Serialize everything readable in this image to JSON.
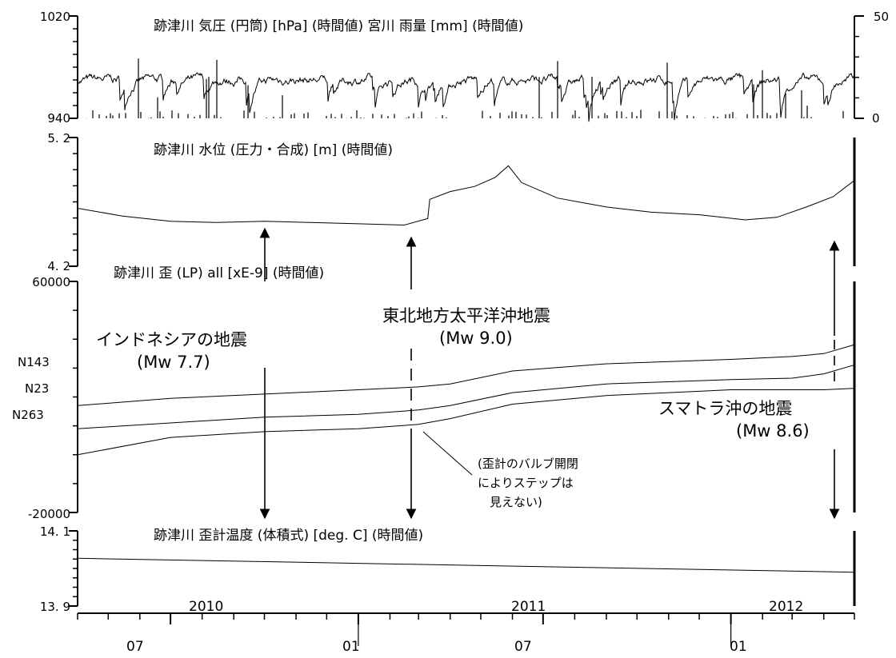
{
  "chart_data": [
    {
      "type": "line",
      "title": "跡津川 気圧 (円筒) [hPa] (時間値) 宮川 雨量 [mm] (時間値)",
      "y_left_ticks": [
        "1020",
        "940"
      ],
      "y_left_range": [
        940,
        1020
      ],
      "y_right_ticks": [
        "50",
        "0"
      ],
      "y_right_range": [
        0,
        50
      ],
      "series": [
        {
          "values_summary": "pressure fluctuates ~955–978 hPa, median ~970 hPa"
        },
        {
          "values_summary": "rainfall bars 0–~30 mm"
        }
      ]
    },
    {
      "type": "line",
      "title": "跡津川 水位 (圧力・合成) [m] (時間値)",
      "y_ticks": [
        "5. 2",
        "4. 2"
      ],
      "y_range": [
        4.2,
        5.2
      ],
      "series": [
        {
          "points": [
            [
              "2010-04-01",
              4.65
            ],
            [
              "2010-05-15",
              4.59
            ],
            [
              "2010-07-01",
              4.55
            ],
            [
              "2010-08-15",
              4.54
            ],
            [
              "2010-10-01",
              4.55
            ],
            [
              "2010-11-15",
              4.54
            ],
            [
              "2011-01-01",
              4.53
            ],
            [
              "2011-02-15",
              4.52
            ],
            [
              "2011-03-10",
              4.57
            ],
            [
              "2011-03-12",
              4.72
            ],
            [
              "2011-04-01",
              4.78
            ],
            [
              "2011-04-25",
              4.82
            ],
            [
              "2011-05-15",
              4.89
            ],
            [
              "2011-05-28",
              4.98
            ],
            [
              "2011-06-10",
              4.85
            ],
            [
              "2011-07-15",
              4.73
            ],
            [
              "2011-09-01",
              4.66
            ],
            [
              "2011-10-15",
              4.62
            ],
            [
              "2011-12-01",
              4.6
            ],
            [
              "2012-01-15",
              4.56
            ],
            [
              "2012-02-15",
              4.58
            ],
            [
              "2012-03-15",
              4.66
            ],
            [
              "2012-04-10",
              4.74
            ],
            [
              "2012-04-30",
              4.86
            ]
          ]
        }
      ]
    },
    {
      "type": "line",
      "title": "跡津川 歪 (LP) all [xE-9] (時間値)",
      "y_ticks": [
        "60000",
        "-20000"
      ],
      "y_range": [
        -20000,
        60000
      ],
      "series": [
        {
          "name": "N143",
          "points": [
            [
              "2010-04-01",
              17000
            ],
            [
              "2010-07-01",
              19500
            ],
            [
              "2010-10-01",
              21000
            ],
            [
              "2011-01-01",
              22500
            ],
            [
              "2011-03-01",
              23500
            ],
            [
              "2011-04-01",
              24500
            ],
            [
              "2011-06-01",
              29000
            ],
            [
              "2011-09-01",
              31500
            ],
            [
              "2012-01-01",
              33000
            ],
            [
              "2012-03-01",
              34000
            ],
            [
              "2012-04-01",
              35000
            ],
            [
              "2012-04-30",
              38000
            ]
          ]
        },
        {
          "name": "N23",
          "points": [
            [
              "2010-04-01",
              9000
            ],
            [
              "2010-07-01",
              11000
            ],
            [
              "2010-10-01",
              13000
            ],
            [
              "2011-01-01",
              14000
            ],
            [
              "2011-03-01",
              15500
            ],
            [
              "2011-04-01",
              17000
            ],
            [
              "2011-06-01",
              21500
            ],
            [
              "2011-09-01",
              24500
            ],
            [
              "2012-01-01",
              26000
            ],
            [
              "2012-03-01",
              26500
            ],
            [
              "2012-04-01",
              28000
            ],
            [
              "2012-04-30",
              31000
            ]
          ]
        },
        {
          "name": "N263",
          "points": [
            [
              "2010-04-01",
              0
            ],
            [
              "2010-07-01",
              6000
            ],
            [
              "2010-10-01",
              8000
            ],
            [
              "2011-01-01",
              9000
            ],
            [
              "2011-03-01",
              10500
            ],
            [
              "2011-04-01",
              12500
            ],
            [
              "2011-06-01",
              17500
            ],
            [
              "2011-09-01",
              20500
            ],
            [
              "2012-01-01",
              22500
            ],
            [
              "2012-03-01",
              22500
            ],
            [
              "2012-04-01",
              22500
            ],
            [
              "2012-04-30",
              23000
            ]
          ]
        }
      ],
      "annotations": [
        {
          "lines": [
            "インドネシアの地震",
            "(Mw 7.7)"
          ],
          "date": "2010-10-25"
        },
        {
          "lines": [
            "東北地方太平洋沖地震",
            "(Mw 9.0)"
          ],
          "date": "2011-03-11"
        },
        {
          "lines": [
            "スマトラ沖の地震",
            "(Mw 8.6)"
          ],
          "date": "2012-04-11"
        },
        {
          "lines": [
            "(歪計のバルブ開閉",
            "によりステップは",
            "見えない)"
          ]
        }
      ]
    },
    {
      "type": "line",
      "title": "跡津川 歪計温度 (体積式) [deg. C] (時間値)",
      "y_ticks": [
        "14. 1",
        "13. 9"
      ],
      "y_range": [
        13.9,
        14.1
      ],
      "series": [
        {
          "points": [
            [
              "2010-04-01",
              14.027
            ],
            [
              "2012-04-30",
              13.99
            ]
          ]
        }
      ]
    }
  ],
  "x_axis": {
    "years": [
      "2010",
      "2011",
      "2012"
    ],
    "months": [
      "07",
      "01",
      "07",
      "01"
    ]
  }
}
